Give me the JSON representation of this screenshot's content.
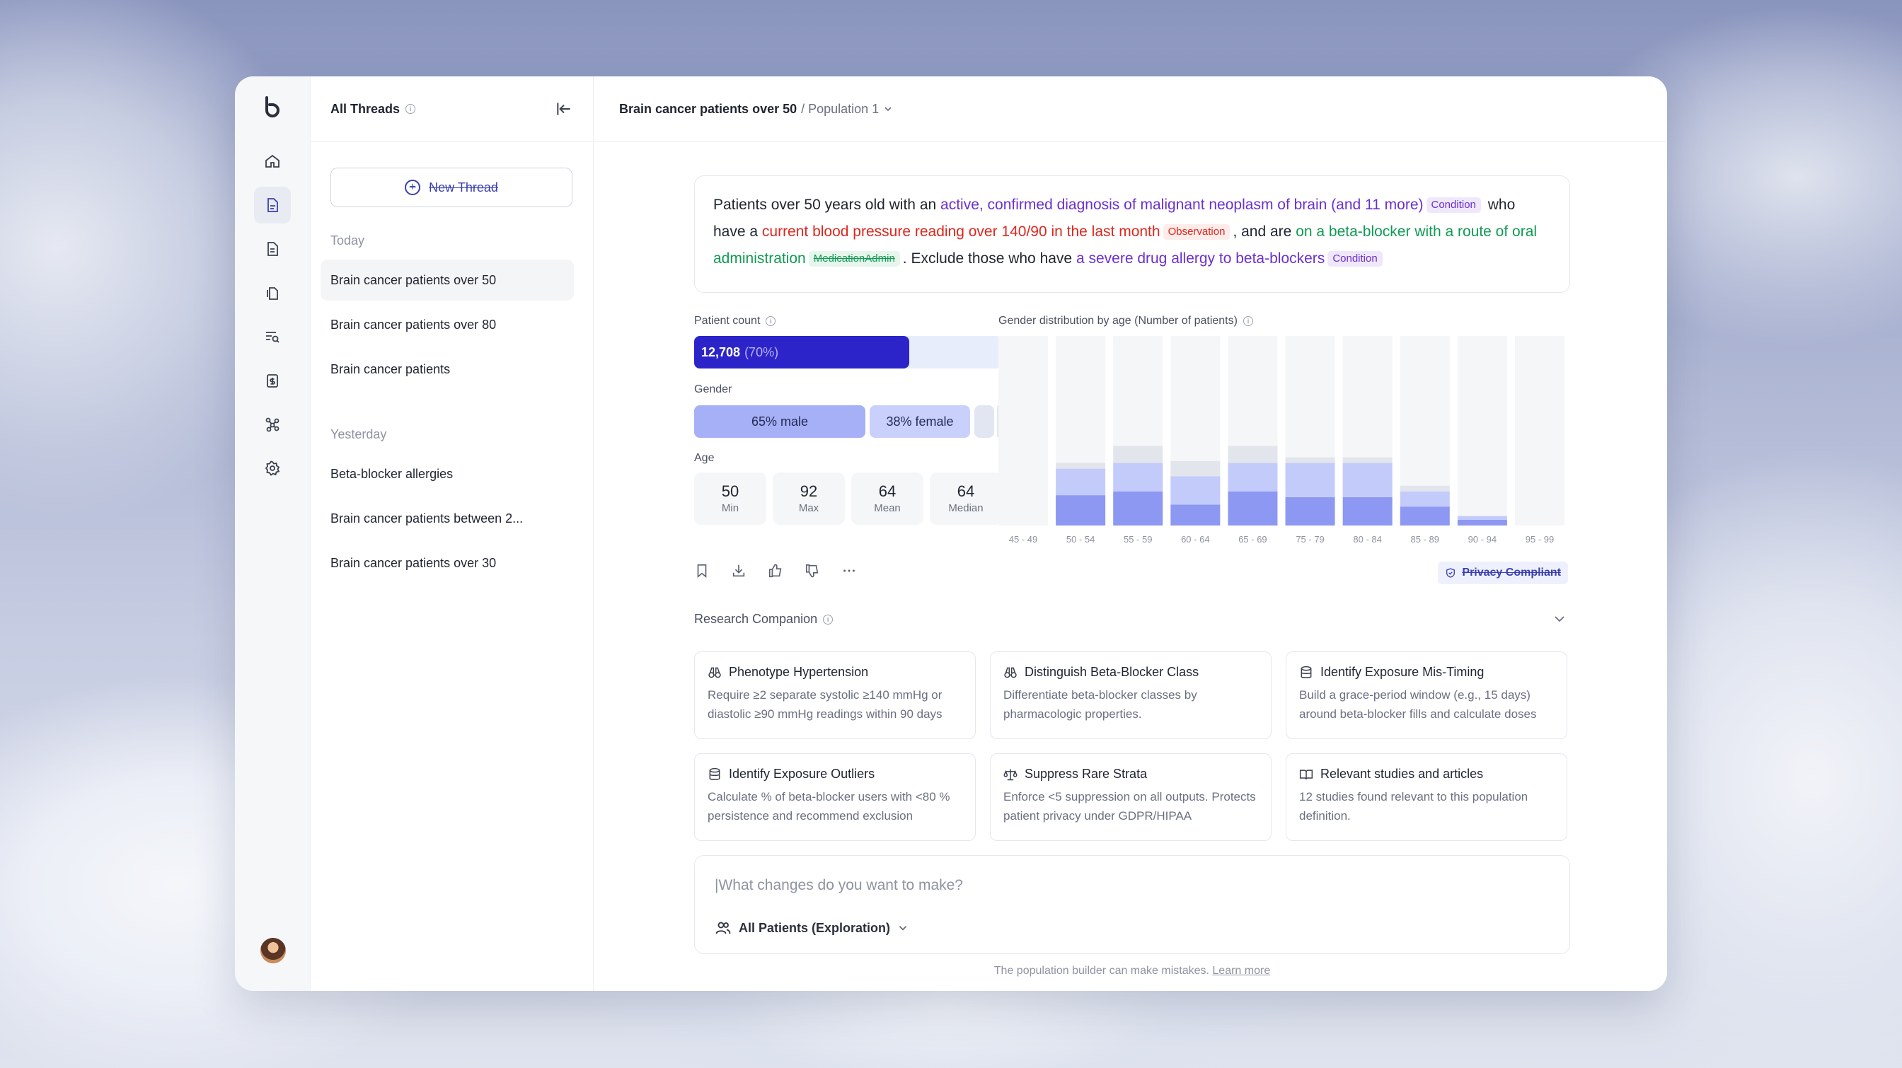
{
  "threads_panel": {
    "title": "All Threads",
    "new_thread_label": "New Thread",
    "sections": [
      {
        "label": "Today",
        "items": [
          "Brain cancer patients over 50",
          "Brain cancer patients over 80",
          "Brain cancer patients"
        ]
      },
      {
        "label": "Yesterday",
        "items": [
          "Beta-blocker allergies",
          "Brain cancer patients between 2...",
          "Brain cancer patients over 30"
        ]
      }
    ],
    "active_item": "Brain cancer patients over 50"
  },
  "rail": {
    "icons": [
      "home-icon",
      "population-icon",
      "document-icon",
      "files-icon",
      "search-list-icon",
      "budget-icon",
      "network-icon",
      "settings-icon"
    ]
  },
  "header": {
    "thread_title": "Brain cancer patients over 50",
    "population": "/ Population 1"
  },
  "query": {
    "p1": "Patients over 50 years old with an ",
    "hl1": "active, confirmed diagnosis of malignant neoplasm of brain (and 11 more)",
    "tag1": "Condition",
    "p2": " who have a ",
    "hl2": "current blood pressure reading over 140/90 in the last month",
    "tag2": "Observation",
    "p3": ", and are ",
    "hl3": "on a beta-blocker with a route of oral administration",
    "tag3": "MedicationAdmin",
    "p4": ". Exclude those who have ",
    "hl4": "a severe drug allergy to beta-blockers",
    "tag4": "Condition"
  },
  "stats": {
    "patient_count_label": "Patient count",
    "patient_count": "12,708",
    "patient_pct": "(70%)",
    "patient_fraction": 0.7,
    "gender_label": "Gender",
    "male": "65% male",
    "female": "38% female",
    "age_label": "Age",
    "age": [
      {
        "value": "50",
        "key": "Min"
      },
      {
        "value": "92",
        "key": "Max"
      },
      {
        "value": "64",
        "key": "Mean"
      },
      {
        "value": "64",
        "key": "Median"
      }
    ]
  },
  "chart_data": {
    "type": "bar",
    "title": "Gender distribution by age (Number of patients)",
    "categories": [
      "45 - 49",
      "50 - 54",
      "55 - 59",
      "60 - 64",
      "65 - 69",
      "75 - 79",
      "80 - 84",
      "85 - 89",
      "90 - 94",
      "95 - 99"
    ],
    "series": [
      {
        "values": [
          0,
          16,
          18,
          11,
          18,
          15,
          15,
          10,
          3,
          0
        ]
      },
      {
        "values": [
          0,
          14,
          15,
          15,
          15,
          18,
          18,
          8,
          2,
          0
        ]
      },
      {
        "values": [
          0,
          3,
          9,
          8,
          9,
          3,
          3,
          3,
          0,
          0
        ]
      }
    ],
    "colors": [
      "#8d98f2",
      "#c3cbfb",
      "#e3e5ec"
    ],
    "ylim": [
      0,
      100
    ]
  },
  "actions": {
    "icons": [
      "bookmark-icon",
      "download-icon",
      "thumbs-up-icon",
      "thumbs-down-icon",
      "more-icon"
    ],
    "privacy_label": "Privacy Compliant"
  },
  "research": {
    "title": "Research Companion",
    "cards": [
      {
        "icon": "binoculars-icon",
        "title": "Phenotype Hypertension",
        "desc": "Require ≥2 separate systolic ≥140 mmHg or diastolic ≥90 mmHg readings within 90 days"
      },
      {
        "icon": "binoculars-icon",
        "title": "Distinguish Beta-Blocker Class",
        "desc": "Differentiate beta-blocker classes by pharmacologic properties."
      },
      {
        "icon": "database-icon",
        "title": "Identify Exposure Mis-Timing",
        "desc": "Build a grace-period window (e.g., 15 days) around beta-blocker fills and calculate doses"
      },
      {
        "icon": "database-icon",
        "title": "Identify Exposure Outliers",
        "desc": "Calculate % of beta-blocker users with <80 % persistence and recommend exclusion"
      },
      {
        "icon": "scale-icon",
        "title": "Suppress Rare Strata",
        "desc": "Enforce <5 suppression on all outputs. Protects patient privacy under GDPR/HIPAA"
      },
      {
        "icon": "book-icon",
        "title": "Relevant studies and articles",
        "desc": "12 studies found relevant to this population definition."
      }
    ]
  },
  "prompt": {
    "placeholder": "|What changes do you want to make?",
    "scope": "All Patients (Exploration)"
  },
  "disclaimer": {
    "text": "The population builder can make mistakes. ",
    "link": "Learn more"
  }
}
